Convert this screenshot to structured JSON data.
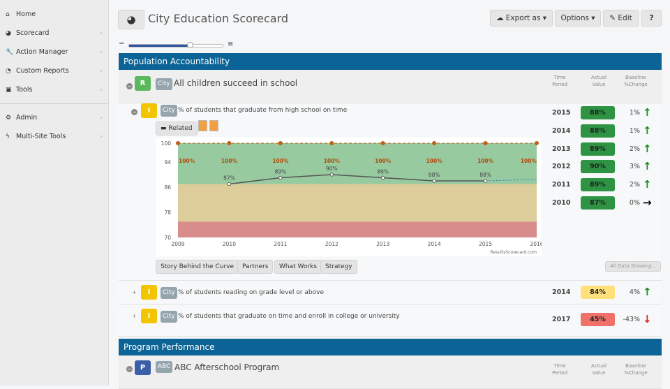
{
  "sidebar": {
    "items": [
      {
        "label": "Home",
        "icon": "home-icon",
        "glyph": "⌂",
        "chev": false
      },
      {
        "label": "Scorecard",
        "icon": "dashboard-icon",
        "glyph": "◕",
        "chev": true
      },
      {
        "label": "Action Manager",
        "icon": "wrench-icon",
        "glyph": "🔧",
        "chev": true
      },
      {
        "label": "Custom Reports",
        "icon": "pie-chart-icon",
        "glyph": "◔",
        "chev": true
      },
      {
        "label": "Tools",
        "icon": "briefcase-icon",
        "glyph": "▣",
        "chev": true
      }
    ],
    "items2": [
      {
        "label": "Admin",
        "icon": "gears-icon",
        "glyph": "⚙",
        "chev": true
      },
      {
        "label": "Multi-Site Tools",
        "icon": "bolt-icon",
        "glyph": "ϟ",
        "chev": true
      }
    ]
  },
  "header": {
    "title": "City Education Scorecard",
    "export": "Export as",
    "options": "Options",
    "edit": "Edit",
    "help": "?"
  },
  "zoom_slider": {
    "value_percent": 65
  },
  "sections": [
    {
      "title": "Population Accountability"
    },
    {
      "title": "Program Performance"
    }
  ],
  "columns": {
    "time": "Time Period",
    "actual": "Actual Value",
    "baseline": "Baseline %Change"
  },
  "result": {
    "badge": "R",
    "tag": "City",
    "title": "All children succeed in school",
    "color": "#5cb85c"
  },
  "indicators": [
    {
      "badge": "I",
      "tag": "City",
      "title": "% of students that graduate from high school on time",
      "rows": [
        {
          "year": "2015",
          "value": "88%",
          "change": "1%",
          "dir": "up"
        },
        {
          "year": "2014",
          "value": "88%",
          "change": "1%",
          "dir": "up"
        },
        {
          "year": "2013",
          "value": "89%",
          "change": "2%",
          "dir": "up"
        },
        {
          "year": "2012",
          "value": "90%",
          "change": "3%",
          "dir": "up"
        },
        {
          "year": "2011",
          "value": "89%",
          "change": "2%",
          "dir": "up"
        },
        {
          "year": "2010",
          "value": "87%",
          "change": "0%",
          "dir": "flat"
        }
      ]
    },
    {
      "badge": "I",
      "tag": "City",
      "title": "% of students reading on grade level or above",
      "rows": [
        {
          "year": "2014",
          "value": "84%",
          "change": "4%",
          "dir": "up"
        }
      ]
    },
    {
      "badge": "I",
      "tag": "City",
      "title": "% of students that graduate on time and enroll in college or university",
      "rows": [
        {
          "year": "2017",
          "value": "45%",
          "change": "-43%",
          "dir": "down"
        }
      ]
    }
  ],
  "buttons": {
    "related": "Related",
    "story": "Story Behind the Curve",
    "partners": "Partners",
    "works": "What Works",
    "strategy": "Strategy",
    "all_data": "All Data Showing..."
  },
  "program": {
    "badge": "P",
    "tag": "ABC",
    "title": "ABC Afterschool Program"
  },
  "colors": {
    "green": "#2e9444",
    "yellow": "#ffe07a",
    "red": "#f0706a",
    "header": "#0b6396"
  },
  "chart_data": {
    "type": "line",
    "x": [
      2010,
      2011,
      2012,
      2013,
      2014,
      2015
    ],
    "values": [
      87,
      89,
      90,
      89,
      88,
      88
    ],
    "labels": [
      "87%",
      "89%",
      "90%",
      "89%",
      "88%",
      "88%"
    ],
    "forecast": {
      "x": [
        2015,
        2016
      ],
      "values": [
        88,
        88.5
      ]
    },
    "target": {
      "x": [
        2009,
        2010,
        2011,
        2012,
        2013,
        2014,
        2015,
        2016
      ],
      "values": [
        100,
        100,
        100,
        100,
        100,
        100,
        100,
        100
      ],
      "label": "100%"
    },
    "bands": [
      {
        "from": 87,
        "to": 100,
        "color": "#98caa0"
      },
      {
        "from": 75,
        "to": 87,
        "color": "#dccd9a"
      },
      {
        "from": 70,
        "to": 75,
        "color": "#d98c8c"
      }
    ],
    "xlim": [
      2009,
      2016
    ],
    "ylim": [
      70,
      100
    ],
    "yticks": [
      70,
      78,
      86,
      94,
      100
    ],
    "xticks": [
      2009,
      2010,
      2011,
      2012,
      2013,
      2014,
      2015,
      2016
    ],
    "credit": "ResultsScorecard.com"
  }
}
